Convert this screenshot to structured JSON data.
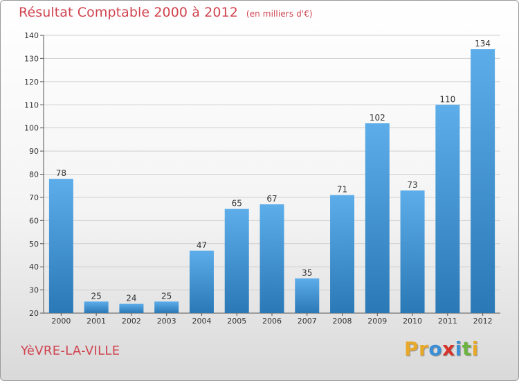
{
  "header": {
    "title": "Résultat Comptable 2000 à 2012",
    "subtitle": "(en milliers d'€)"
  },
  "footer": {
    "location": "YèVRE-LA-VILLE",
    "logo_letters": [
      "P",
      "r",
      "o",
      "x",
      "i",
      "t",
      "i"
    ],
    "logo_colors": [
      "#e8a82a",
      "#e8a82a",
      "#3a8fd6",
      "#d6332b",
      "#3a8fd6",
      "#6cb33f",
      "#e8a82a"
    ]
  },
  "colors": {
    "bar_top": "#5dadea",
    "bar_bottom": "#2a79b6",
    "accent": "#d0434f"
  },
  "chart_data": {
    "type": "bar",
    "categories": [
      "2000",
      "2001",
      "2002",
      "2003",
      "2004",
      "2005",
      "2006",
      "2007",
      "2008",
      "2009",
      "2010",
      "2011",
      "2012"
    ],
    "values": [
      78,
      25,
      24,
      25,
      47,
      65,
      67,
      35,
      71,
      102,
      73,
      110,
      134
    ],
    "title": "Résultat Comptable 2000 à 2012",
    "xlabel": "",
    "ylabel": "",
    "ylim": [
      20,
      140
    ],
    "yticks": [
      20,
      30,
      40,
      50,
      60,
      70,
      80,
      90,
      100,
      110,
      120,
      130,
      140
    ],
    "grid": true
  }
}
